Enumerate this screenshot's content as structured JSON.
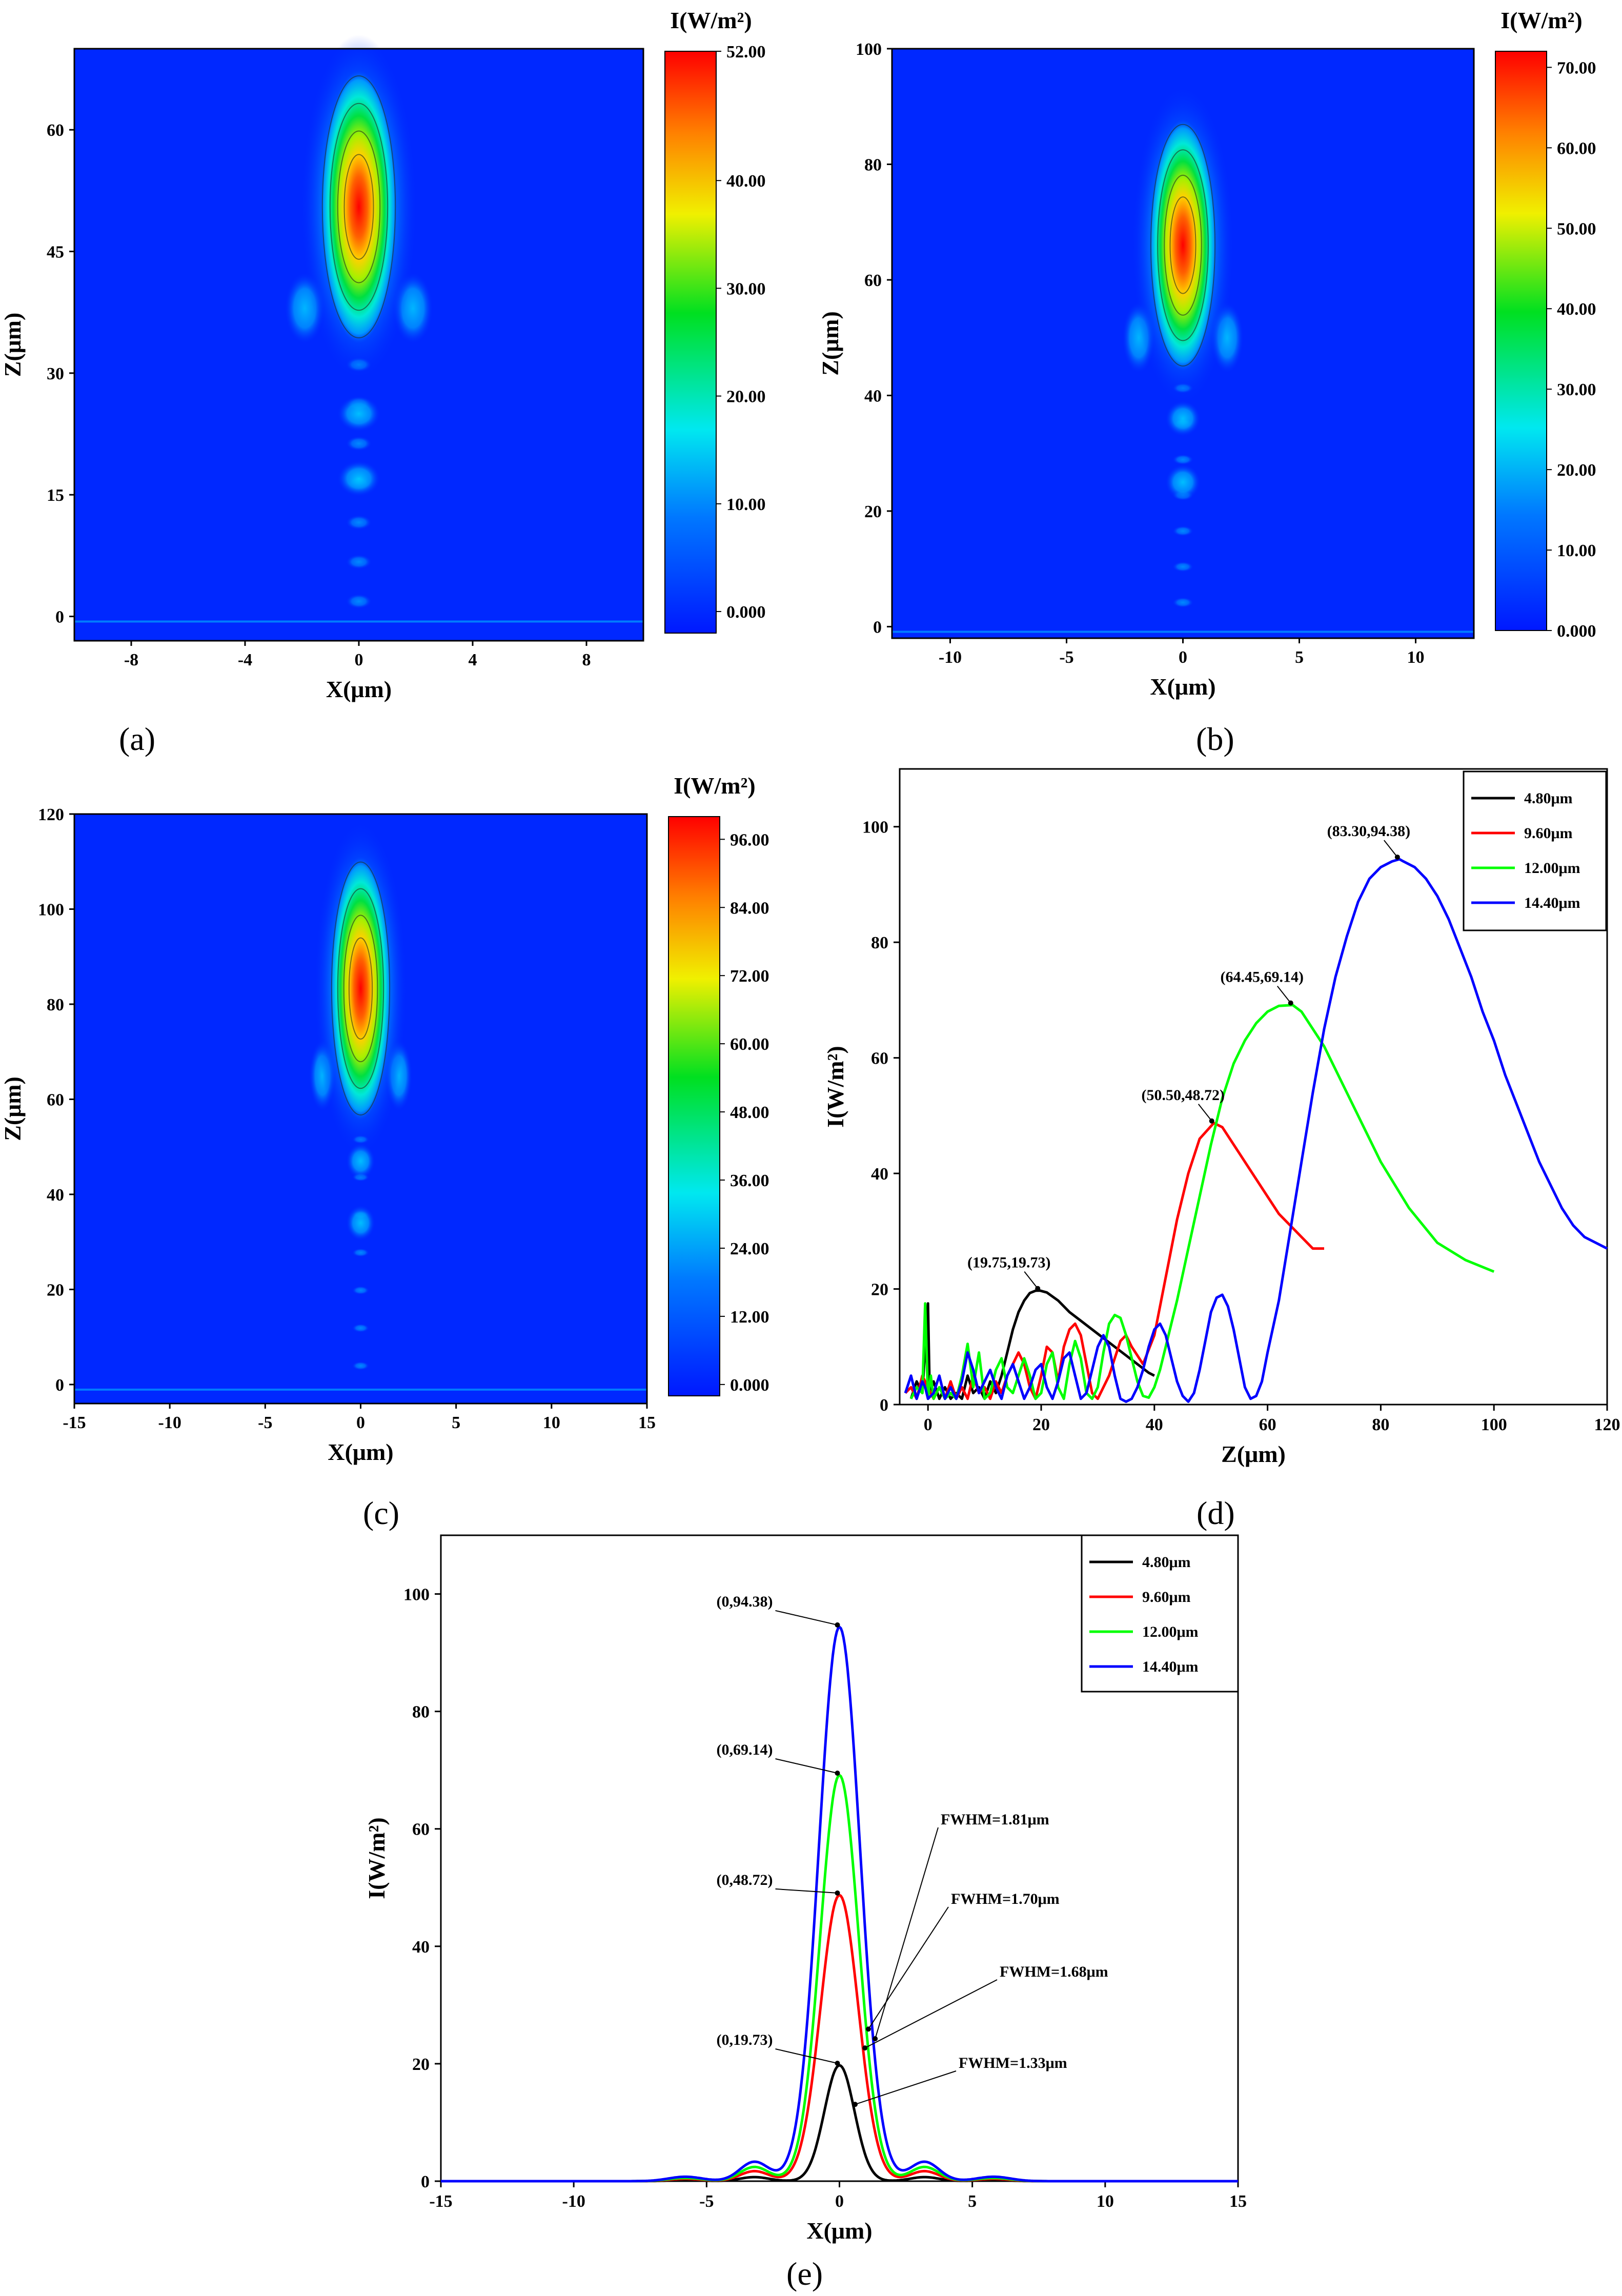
{
  "chart_data": [
    {
      "panel": "(a)",
      "type": "heatmap",
      "title": "",
      "xlabel": "X(μm)",
      "ylabel": "Z(μm)",
      "xlim": [
        -10,
        10
      ],
      "ylim": [
        -3,
        70
      ],
      "xticks": [
        -8,
        -4,
        0,
        4,
        8
      ],
      "yticks": [
        0,
        15,
        30,
        45,
        60
      ],
      "colorbar": {
        "label": "I(W/m²)",
        "range": [
          -2,
          52
        ],
        "ticks": [
          "52.00",
          "40.00",
          "30.00",
          "20.00",
          "10.00",
          "0.000"
        ],
        "tick_values": [
          52,
          40,
          30,
          20,
          10,
          0
        ]
      },
      "focus": {
        "x": 0,
        "z": 50.5,
        "peak": 48.72,
        "half_len": 17,
        "half_width": 1.35
      },
      "side_lobes": [
        {
          "z": 38,
          "dx": 1.9,
          "v": 0.28
        },
        {
          "z": 25,
          "dx": 0,
          "v": 0.4
        },
        {
          "z": 17,
          "dx": 0,
          "v": 0.3
        }
      ]
    },
    {
      "panel": "(b)",
      "type": "heatmap",
      "title": "",
      "xlabel": "X(μm)",
      "ylabel": "Z(μm)",
      "xlim": [
        -12.5,
        12.5
      ],
      "ylim": [
        -2,
        100
      ],
      "xticks": [
        -10,
        -5,
        0,
        5,
        10
      ],
      "yticks": [
        0,
        20,
        40,
        60,
        80,
        100
      ],
      "colorbar": {
        "label": "I(W/m²)",
        "range": [
          0,
          72
        ],
        "ticks": [
          "70.00",
          "60.00",
          "50.00",
          "40.00",
          "30.00",
          "20.00",
          "10.00",
          "0.000"
        ],
        "tick_values": [
          70,
          60,
          50,
          40,
          30,
          20,
          10,
          0
        ]
      },
      "focus": {
        "x": 0,
        "z": 66,
        "peak": 69.14,
        "half_len": 22,
        "half_width": 1.45
      },
      "side_lobes": [
        {
          "z": 50,
          "dx": 1.9,
          "v": 0.28
        },
        {
          "z": 36,
          "dx": 0,
          "v": 0.35
        },
        {
          "z": 25,
          "dx": 0,
          "v": 0.25
        }
      ]
    },
    {
      "panel": "(c)",
      "type": "heatmap",
      "title": "",
      "xlabel": "X(μm)",
      "ylabel": "Z(μm)",
      "xlim": [
        -15,
        15
      ],
      "ylim": [
        -4,
        120
      ],
      "xticks": [
        -15,
        -10,
        -5,
        0,
        5,
        10,
        15
      ],
      "yticks": [
        0,
        20,
        40,
        60,
        80,
        100,
        120
      ],
      "colorbar": {
        "label": "I(W/m²)",
        "range": [
          -2,
          100
        ],
        "ticks": [
          "96.00",
          "84.00",
          "72.00",
          "60.00",
          "48.00",
          "36.00",
          "24.00",
          "12.00",
          "0.000"
        ],
        "tick_values": [
          96,
          84,
          72,
          60,
          48,
          36,
          24,
          12,
          0
        ]
      },
      "focus": {
        "x": 0,
        "z": 83.3,
        "peak": 94.38,
        "half_len": 28,
        "half_width": 1.6
      },
      "side_lobes": [
        {
          "z": 65,
          "dx": 2.0,
          "v": 0.25
        },
        {
          "z": 47,
          "dx": 0,
          "v": 0.3
        },
        {
          "z": 34,
          "dx": 0,
          "v": 0.22
        }
      ]
    },
    {
      "panel": "(d)",
      "type": "line",
      "title": "",
      "xlabel": "Z(μm)",
      "ylabel": "I(W/m²)",
      "xlim": [
        -5,
        120
      ],
      "ylim": [
        0,
        110
      ],
      "xticks": [
        0,
        20,
        40,
        60,
        80,
        100,
        120
      ],
      "yticks": [
        0,
        20,
        40,
        60,
        80,
        100
      ],
      "legend": "top-right",
      "series": [
        {
          "name": "4.80μm",
          "color": "#000000",
          "x": [
            -3,
            -2,
            -1,
            0,
            0.3,
            1,
            2,
            3,
            4,
            5,
            6,
            7,
            8,
            9,
            10,
            11,
            12,
            13,
            14,
            15,
            16,
            17,
            18,
            19,
            19.75,
            21,
            23,
            25,
            27,
            29,
            31,
            33,
            35,
            37,
            39,
            40
          ],
          "y": [
            1,
            4,
            2,
            17.5,
            2,
            4,
            1,
            3,
            1,
            2,
            1,
            5,
            2,
            3,
            1,
            4,
            2,
            5,
            9,
            13,
            16,
            18,
            19.3,
            19.7,
            19.73,
            19.4,
            18,
            16,
            14.5,
            13,
            11.5,
            10,
            8.5,
            7,
            5.5,
            5
          ]
        },
        {
          "name": "9.60μm",
          "color": "#ff0000",
          "x": [
            -4,
            -3,
            -2,
            -1,
            0,
            1,
            2,
            3,
            4,
            5,
            6,
            7,
            8,
            9,
            10,
            11,
            12,
            13,
            14,
            15,
            16,
            17,
            18,
            19,
            20,
            21,
            22,
            23,
            24,
            25,
            26,
            27,
            28,
            29,
            30,
            31,
            32,
            33,
            34,
            35,
            36,
            38,
            40,
            42,
            44,
            46,
            48,
            50.5,
            52,
            54,
            56,
            58,
            60,
            62,
            64,
            66,
            68,
            70
          ],
          "y": [
            2,
            3,
            1,
            5,
            3,
            1,
            3,
            1,
            4,
            1,
            3,
            1,
            5,
            2,
            3,
            1,
            4,
            2,
            5,
            7,
            9,
            7,
            3,
            1,
            5,
            10,
            9,
            4,
            10,
            13,
            14,
            12,
            7,
            2,
            1,
            3,
            5,
            8,
            11,
            12,
            10,
            7,
            12,
            22,
            32,
            40,
            46,
            48.72,
            48,
            45,
            42,
            39,
            36,
            33,
            31,
            29,
            27,
            27
          ]
        },
        {
          "name": "12.00μm",
          "color": "#00ff00",
          "x": [
            -3,
            -2,
            -1,
            -0.5,
            0,
            0.5,
            1,
            2,
            3,
            4,
            5,
            6,
            7,
            8,
            9,
            10,
            11,
            12,
            13,
            14,
            15,
            16,
            17,
            18,
            19,
            20,
            21,
            22,
            23,
            24,
            25,
            26,
            27,
            28,
            29,
            30,
            31,
            32,
            33,
            34,
            35,
            36,
            37,
            38,
            39,
            40,
            41,
            42,
            43,
            44,
            46,
            48,
            50,
            52,
            54,
            56,
            58,
            60,
            62,
            64.45,
            66,
            70,
            75,
            80,
            85,
            90,
            95,
            100
          ],
          "y": [
            1,
            3,
            2,
            17.5,
            1,
            5,
            1,
            3,
            1,
            2,
            1,
            5,
            10.5,
            3,
            9,
            1,
            2,
            6,
            8,
            3,
            2,
            5,
            8,
            5,
            1,
            2,
            7,
            9,
            3,
            1,
            7,
            11,
            8,
            2,
            1,
            3,
            9,
            14,
            15.5,
            15,
            12,
            8,
            4,
            1.5,
            1.2,
            3,
            6,
            10,
            14,
            18,
            27,
            36,
            45,
            53,
            59,
            63,
            66,
            68,
            69,
            69.14,
            68,
            62,
            52,
            42,
            34,
            28,
            25,
            23
          ]
        },
        {
          "name": "14.40μm",
          "color": "#0000ff",
          "x": [
            -4,
            -3,
            -2,
            -1,
            -0.5,
            0,
            1,
            2,
            3,
            4,
            5,
            6,
            7,
            8,
            9,
            10,
            11,
            12,
            13,
            14,
            15,
            16,
            17,
            18,
            19,
            20,
            21,
            22,
            23,
            24,
            25,
            26,
            27,
            28,
            29,
            30,
            31,
            32,
            33,
            34,
            35,
            36,
            37,
            38,
            39,
            40,
            41,
            42,
            43,
            44,
            45,
            46,
            47,
            48,
            49,
            50,
            51,
            52,
            53,
            54,
            55,
            56,
            57,
            58,
            59,
            60,
            62,
            64,
            66,
            68,
            70,
            72,
            74,
            76,
            78,
            80,
            82,
            83.3,
            84,
            86,
            88,
            90,
            92,
            94,
            96,
            98,
            100,
            102,
            104,
            106,
            108,
            110,
            112,
            114,
            116,
            118,
            120
          ],
          "y": [
            2,
            5,
            1,
            4,
            3,
            1,
            2,
            5,
            1,
            3,
            1,
            4,
            9,
            6,
            2,
            4,
            6,
            3,
            1,
            5,
            7,
            4,
            1,
            3,
            6,
            7,
            3,
            1,
            4,
            8,
            9,
            5,
            1,
            2,
            6,
            10,
            12,
            10,
            5,
            1,
            0.5,
            1,
            3,
            6,
            10,
            13,
            14,
            12,
            8,
            4,
            1.5,
            0.5,
            2,
            6,
            11,
            16,
            18.5,
            19,
            17,
            13,
            8,
            3,
            1,
            1.5,
            4,
            9,
            18,
            30,
            42,
            54,
            65,
            74,
            81,
            87,
            91,
            93,
            94,
            94.38,
            94,
            93,
            91,
            88,
            84,
            79,
            74,
            68,
            63,
            57,
            52,
            47,
            42,
            38,
            34,
            31,
            29,
            28,
            27
          ]
        }
      ],
      "annotations": [
        {
          "text": "(19.75,19.73)",
          "x": 19.75,
          "y": 19.73
        },
        {
          "text": "(50.50,48.72)",
          "x": 50.5,
          "y": 48.72
        },
        {
          "text": "(64.45,69.14)",
          "x": 64.45,
          "y": 69.14
        },
        {
          "text": "(83.30,94.38)",
          "x": 83.3,
          "y": 94.38
        }
      ]
    },
    {
      "panel": "(e)",
      "type": "line",
      "title": "",
      "xlabel": "X(μm)",
      "ylabel": "I(W/m²)",
      "xlim": [
        -15,
        15
      ],
      "ylim": [
        0,
        110
      ],
      "xticks": [
        -15,
        -10,
        -5,
        0,
        5,
        10,
        15
      ],
      "yticks": [
        0,
        20,
        40,
        60,
        80,
        100
      ],
      "legend": "top-right",
      "series": [
        {
          "name": "4.80μm",
          "color": "#000000",
          "peak": 19.73,
          "fwhm": 1.33
        },
        {
          "name": "9.60μm",
          "color": "#ff0000",
          "peak": 48.72,
          "fwhm": 1.68
        },
        {
          "name": "12.00μm",
          "color": "#00ff00",
          "peak": 69.14,
          "fwhm": 1.7
        },
        {
          "name": "14.40μm",
          "color": "#0000ff",
          "peak": 94.38,
          "fwhm": 1.81
        }
      ],
      "annotations": [
        {
          "text": "(0,94.38)",
          "x": 0,
          "y": 94.38
        },
        {
          "text": "(0,69.14)",
          "x": 0,
          "y": 69.14
        },
        {
          "text": "(0,48.72)",
          "x": 0,
          "y": 48.72
        },
        {
          "text": "(0,19.73)",
          "x": 0,
          "y": 19.73
        }
      ],
      "fwhm_labels": [
        {
          "text": "FWHM=1.81μm",
          "color": "#0000ff"
        },
        {
          "text": "FWHM=1.70μm",
          "color": "#00ff00"
        },
        {
          "text": "FWHM=1.68μm",
          "color": "#ff0000"
        },
        {
          "text": "FWHM=1.33μm",
          "color": "#000000"
        }
      ]
    }
  ]
}
